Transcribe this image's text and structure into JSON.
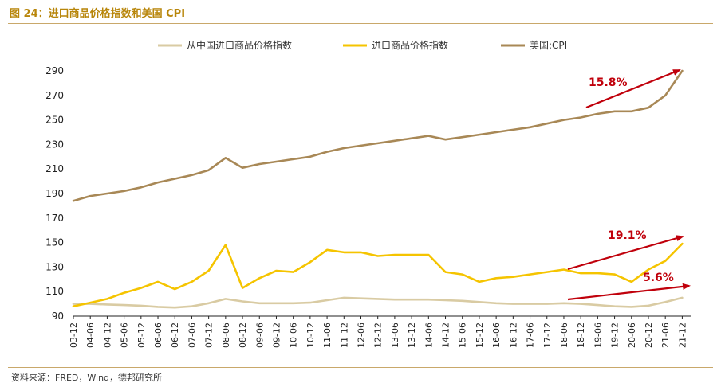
{
  "header": {
    "title": "图 24：进口商品价格指数和美国 CPI"
  },
  "footer": {
    "source": "资料来源：FRED，Wind，德邦研究所"
  },
  "colors": {
    "china": "#d9cba3",
    "import": "#f5c400",
    "cpi": "#a88856",
    "arrow": "#c0000b",
    "text": "#222222",
    "title": "#b8860b"
  },
  "chart_data": {
    "type": "line",
    "ylim": [
      90,
      290
    ],
    "yticks": [
      90,
      110,
      130,
      150,
      170,
      190,
      210,
      230,
      250,
      270,
      290
    ],
    "xticks": [
      "03-12",
      "04-06",
      "04-12",
      "05-06",
      "05-12",
      "06-06",
      "06-12",
      "07-06",
      "07-12",
      "08-06",
      "08-12",
      "09-06",
      "09-12",
      "10-06",
      "10-12",
      "11-06",
      "11-12",
      "12-06",
      "12-12",
      "13-06",
      "13-12",
      "14-06",
      "14-12",
      "15-06",
      "15-12",
      "16-06",
      "16-12",
      "17-06",
      "17-12",
      "18-06",
      "18-12",
      "19-06",
      "19-12",
      "20-06",
      "20-12",
      "21-06",
      "21-12"
    ],
    "legend_position": "top",
    "series": [
      {
        "name": "从中国进口商品价格指数",
        "color": "#d9cba3",
        "values": [
          100,
          100,
          99.5,
          99,
          98.5,
          97.5,
          97,
          98,
          100.5,
          104,
          102,
          100.5,
          100.5,
          100.5,
          101,
          103,
          105,
          104.5,
          104,
          103.5,
          103.5,
          103.5,
          103,
          102.5,
          101.5,
          100.5,
          100,
          100,
          100,
          100.5,
          100,
          99,
          98,
          97.5,
          98.5,
          101.5,
          105
        ]
      },
      {
        "name": "进口商品价格指数",
        "color": "#f5c400",
        "values": [
          98,
          101,
          104,
          109,
          113,
          118,
          112,
          118,
          127,
          148,
          113,
          121,
          127,
          126,
          134,
          144,
          142,
          142,
          139,
          140,
          140,
          140,
          126,
          124,
          118,
          121,
          122,
          124,
          126,
          128,
          125,
          125,
          124,
          118,
          128,
          135,
          149
        ]
      },
      {
        "name": "美国:CPI",
        "color": "#a88856",
        "values": [
          184,
          188,
          190,
          192,
          195,
          199,
          202,
          205,
          209,
          219,
          211,
          214,
          216,
          218,
          220,
          224,
          227,
          229,
          231,
          233,
          235,
          237,
          234,
          236,
          238,
          240,
          242,
          244,
          247,
          250,
          252,
          255,
          257,
          257,
          260,
          270,
          290
        ]
      }
    ],
    "annotations": [
      {
        "label": "15.8%",
        "color": "#c0000b"
      },
      {
        "label": "19.1%",
        "color": "#c0000b"
      },
      {
        "label": "5.6%",
        "color": "#c0000b"
      }
    ]
  }
}
